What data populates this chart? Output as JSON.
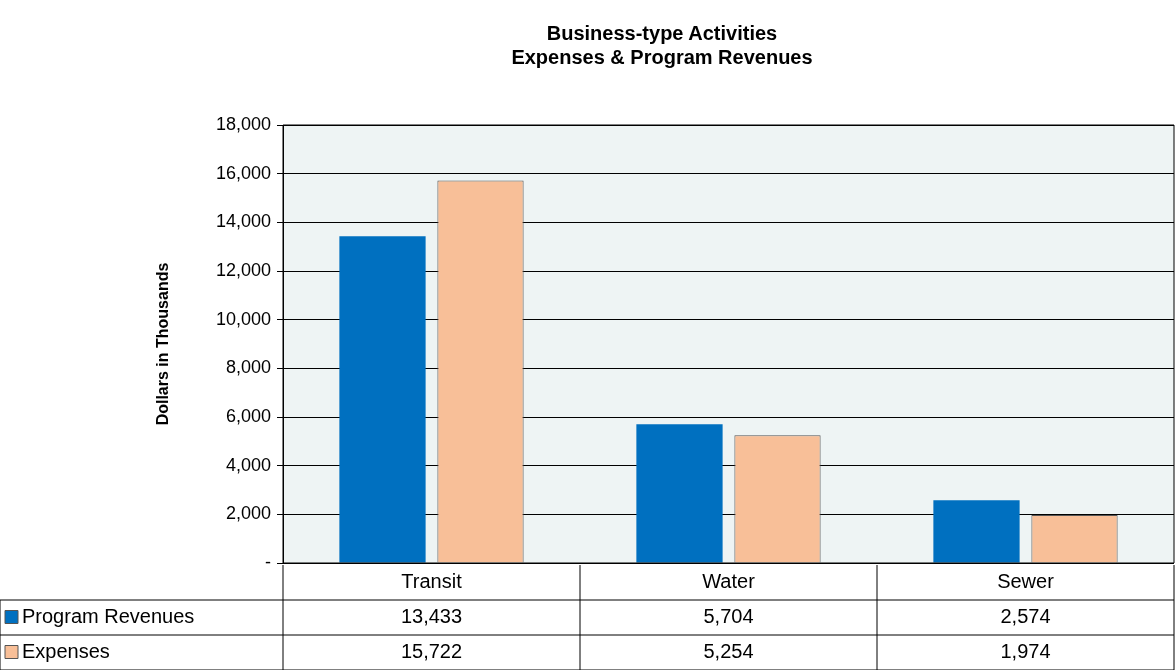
{
  "chart_data": {
    "type": "bar",
    "title": "Business-type Activities\nExpenses & Program Revenues",
    "ylabel": "Dollars in Thousands",
    "categories": [
      "Transit",
      "Water",
      "Sewer"
    ],
    "series": [
      {
        "name": "Program Revenues",
        "color": "#0070c0",
        "values": [
          13433,
          5704,
          2574
        ],
        "value_labels": [
          "13,433",
          "5,704",
          "2,574"
        ]
      },
      {
        "name": "Expenses",
        "color": "#f8bf98",
        "values": [
          15722,
          5254,
          1974
        ],
        "value_labels": [
          "15,722",
          "5,254",
          "1,974"
        ]
      }
    ],
    "ylim": [
      0,
      18000
    ],
    "yticks": [
      {
        "value": 0,
        "label": "-"
      },
      {
        "value": 2000,
        "label": "2,000"
      },
      {
        "value": 4000,
        "label": "4,000"
      },
      {
        "value": 6000,
        "label": "6,000"
      },
      {
        "value": 8000,
        "label": "8,000"
      },
      {
        "value": 10000,
        "label": "10,000"
      },
      {
        "value": 12000,
        "label": "12,000"
      },
      {
        "value": 14000,
        "label": "14,000"
      },
      {
        "value": 16000,
        "label": "16,000"
      },
      {
        "value": 18000,
        "label": "18,000"
      }
    ],
    "grid": "y",
    "legend": "bottom left"
  }
}
